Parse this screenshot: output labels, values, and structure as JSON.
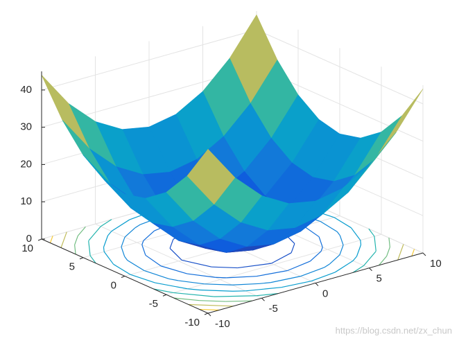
{
  "chart_data": {
    "type": "surface",
    "x": [
      -10,
      -7.5,
      -5,
      -2.5,
      0,
      2.5,
      5,
      7.5,
      10
    ],
    "y": [
      -10,
      -7.5,
      -5,
      -2.5,
      0,
      2.5,
      5,
      7.5,
      10
    ],
    "z": [
      [
        44,
        34.375,
        27.5,
        23.375,
        22,
        23.375,
        27.5,
        34.375,
        44
      ],
      [
        34.375,
        24.75,
        17.875,
        13.75,
        12.375,
        13.75,
        17.875,
        24.75,
        34.375
      ],
      [
        27.5,
        17.875,
        11,
        6.875,
        5.5,
        6.875,
        11,
        17.875,
        27.5
      ],
      [
        23.375,
        13.75,
        6.875,
        2.75,
        1.375,
        2.75,
        6.875,
        13.75,
        23.375
      ],
      [
        22,
        12.375,
        5.5,
        1.375,
        0,
        1.375,
        5.5,
        12.375,
        22
      ],
      [
        23.375,
        13.75,
        6.875,
        2.75,
        1.375,
        2.75,
        6.875,
        13.75,
        23.375
      ],
      [
        27.5,
        17.875,
        11,
        6.875,
        5.5,
        6.875,
        11,
        17.875,
        27.5
      ],
      [
        34.375,
        24.75,
        17.875,
        13.75,
        12.375,
        13.75,
        17.875,
        24.75,
        34.375
      ],
      [
        44,
        34.375,
        27.5,
        23.375,
        22,
        23.375,
        27.5,
        34.375,
        44
      ]
    ],
    "xlim": [
      -10,
      10
    ],
    "ylim": [
      -10,
      10
    ],
    "zlim": [
      0,
      45
    ],
    "xticks": [
      -10,
      -5,
      0,
      5,
      10
    ],
    "yticks": [
      -10,
      -5,
      0,
      5,
      10
    ],
    "zticks": [
      0,
      10,
      20,
      30,
      40
    ],
    "contour_levels": [
      5,
      10,
      15,
      20,
      25,
      30,
      35,
      40
    ],
    "grid": true,
    "colormap": "parula"
  },
  "watermark": "https://blog.csdn.net/zx_chun"
}
